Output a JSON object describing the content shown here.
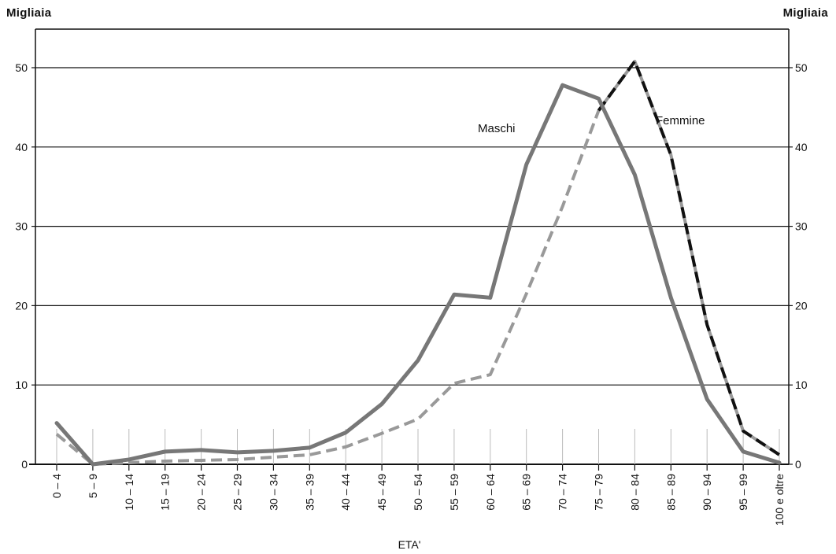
{
  "chart_data": {
    "type": "line",
    "y_unit_left": "Migliaia",
    "y_unit_right": "Migliaia",
    "xlabel": "ETA'",
    "ylabel": "",
    "ylim": [
      0,
      55
    ],
    "y_ticks": [
      0,
      10,
      20,
      30,
      40,
      50
    ],
    "grid": true,
    "categories": [
      "0 – 4",
      "5 – 9",
      "10 – 14",
      "15 – 19",
      "20 – 24",
      "25 – 29",
      "30 – 34",
      "35 – 39",
      "40 – 44",
      "45 – 49",
      "50 – 54",
      "55 – 59",
      "60 – 64",
      "65 – 69",
      "70 – 74",
      "75 – 79",
      "80 – 84",
      "85 – 89",
      "90 – 94",
      "95 – 99",
      "100 e oltre"
    ],
    "series": [
      {
        "name": "Maschi",
        "color": "#777777",
        "style": "solid",
        "values": [
          5.2,
          0,
          0.6,
          1.6,
          1.8,
          1.5,
          1.7,
          2.1,
          4.0,
          7.6,
          13.1,
          21.4,
          21.0,
          37.8,
          47.8,
          46.1,
          36.5,
          21.0,
          8.2,
          1.6,
          0.2
        ]
      },
      {
        "name": "Femmine",
        "color": "#999999",
        "peak_color": "#111111",
        "style": "dashed",
        "values": [
          3.8,
          0,
          0.2,
          0.4,
          0.5,
          0.6,
          0.9,
          1.2,
          2.2,
          3.9,
          5.7,
          10.2,
          11.3,
          21.5,
          32.5,
          44.6,
          50.8,
          39.0,
          17.6,
          4.2,
          1.2
        ]
      }
    ]
  }
}
